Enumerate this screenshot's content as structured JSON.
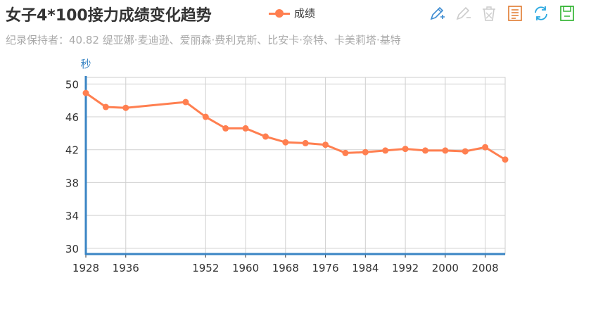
{
  "header": {
    "title": "女子4*100接力成绩变化趋势",
    "subtitle": "纪录保持者：40.82 缇亚娜·麦迪逊、爱丽森·费利克斯、比安卡·奈特、卡美莉塔·基特"
  },
  "legend": {
    "items": [
      {
        "name": "成绩",
        "color": "#ff7f50"
      }
    ]
  },
  "toolbox": {
    "items": [
      {
        "name": "area-zoom-icon",
        "color": "#3d8bd1"
      },
      {
        "name": "zoom-reset-icon",
        "color": "#cccccc"
      },
      {
        "name": "clear-icon",
        "color": "#cccccc"
      },
      {
        "name": "data-view-icon",
        "color": "#e07a2f"
      },
      {
        "name": "refresh-icon",
        "color": "#2aa8e0"
      },
      {
        "name": "save-image-icon",
        "color": "#28b028"
      }
    ]
  },
  "chart_data": {
    "type": "line",
    "ylabel": "秒",
    "xlabel": "",
    "ylim": [
      29.3,
      50.8
    ],
    "yticks": [
      30,
      34,
      38,
      42,
      46,
      50
    ],
    "xticks": [
      1928,
      1936,
      1952,
      1960,
      1968,
      1976,
      1984,
      1992,
      2000,
      2008
    ],
    "grid": true,
    "legend_position": "top",
    "series": [
      {
        "name": "成绩",
        "color": "#ff7f50",
        "x": [
          1928,
          1932,
          1936,
          1948,
          1952,
          1956,
          1960,
          1964,
          1968,
          1972,
          1976,
          1980,
          1984,
          1988,
          1992,
          1996,
          2000,
          2004,
          2008,
          2012
        ],
        "values": [
          48.9,
          47.2,
          47.1,
          47.8,
          46.0,
          44.6,
          44.6,
          43.6,
          42.9,
          42.8,
          42.6,
          41.6,
          41.7,
          41.9,
          42.1,
          41.9,
          41.9,
          41.8,
          42.3,
          40.8
        ]
      }
    ]
  }
}
